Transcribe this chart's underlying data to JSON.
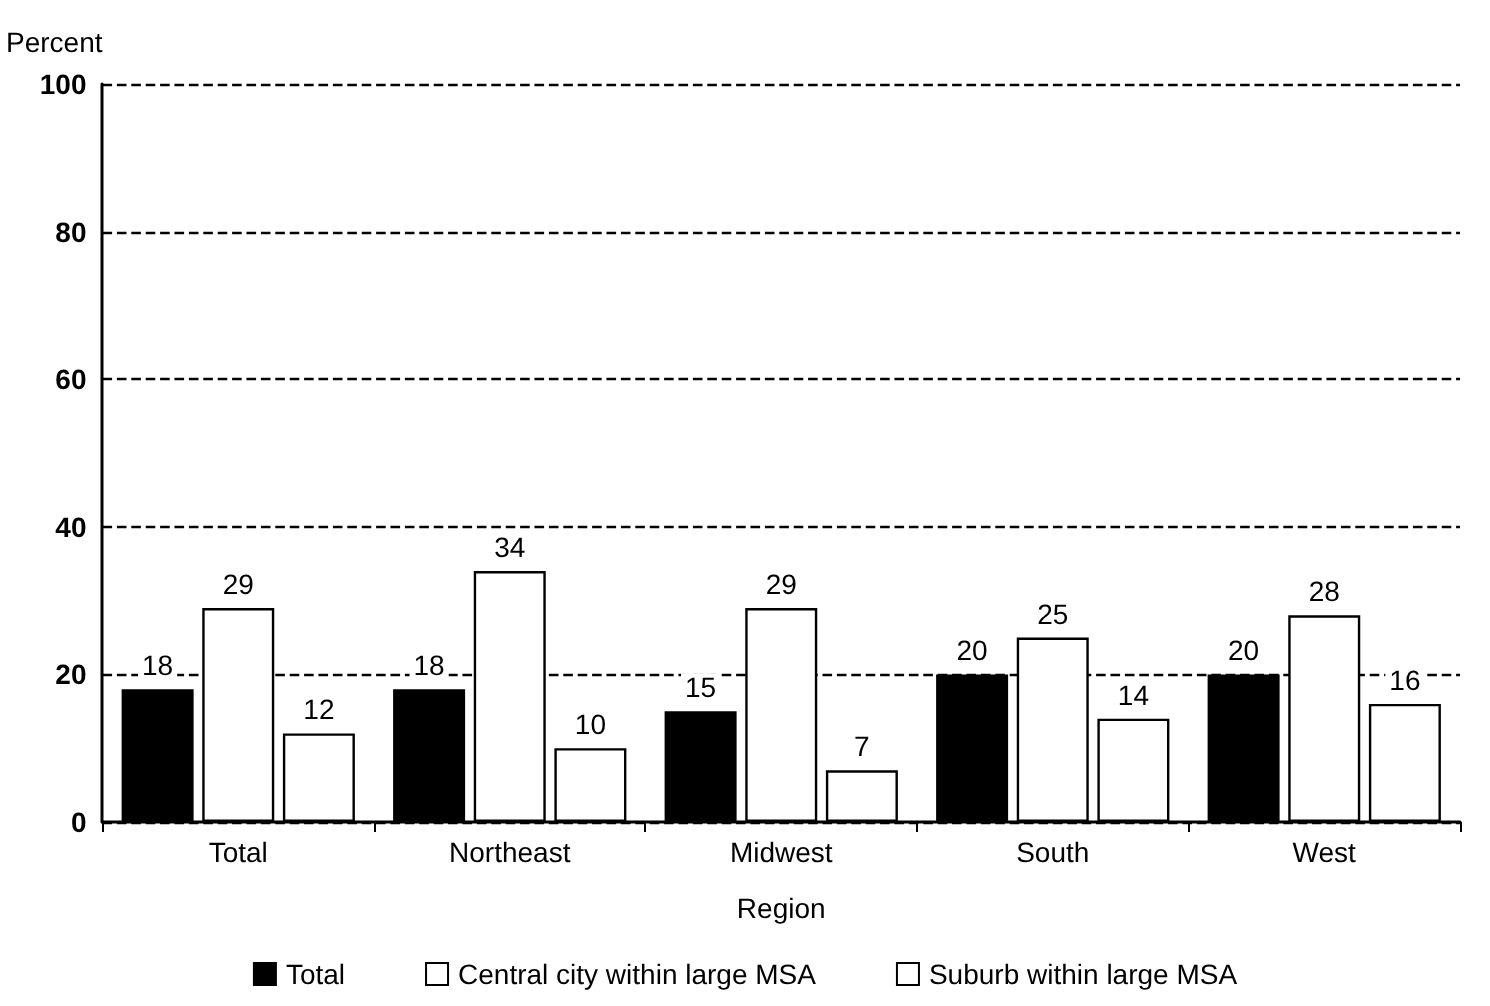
{
  "chart_data": {
    "type": "bar",
    "xlabel": "Region",
    "ylabel": "Percent",
    "categories": [
      "Total",
      "Northeast",
      "Midwest",
      "South",
      "West"
    ],
    "series": [
      {
        "name": "Total",
        "color": "#000000",
        "values": [
          18,
          18,
          15,
          20,
          20
        ]
      },
      {
        "name": "Central city within large MSA",
        "color": "#ffffff",
        "values": [
          29,
          34,
          29,
          25,
          28
        ]
      },
      {
        "name": "Suburb within large MSA",
        "color": "#ffffff",
        "values": [
          12,
          10,
          7,
          14,
          16
        ]
      }
    ],
    "ylim": [
      0,
      100
    ],
    "yticks": [
      0,
      20,
      40,
      60,
      80,
      100
    ],
    "grid": "y",
    "legend": "bottom",
    "data_labels": true
  }
}
